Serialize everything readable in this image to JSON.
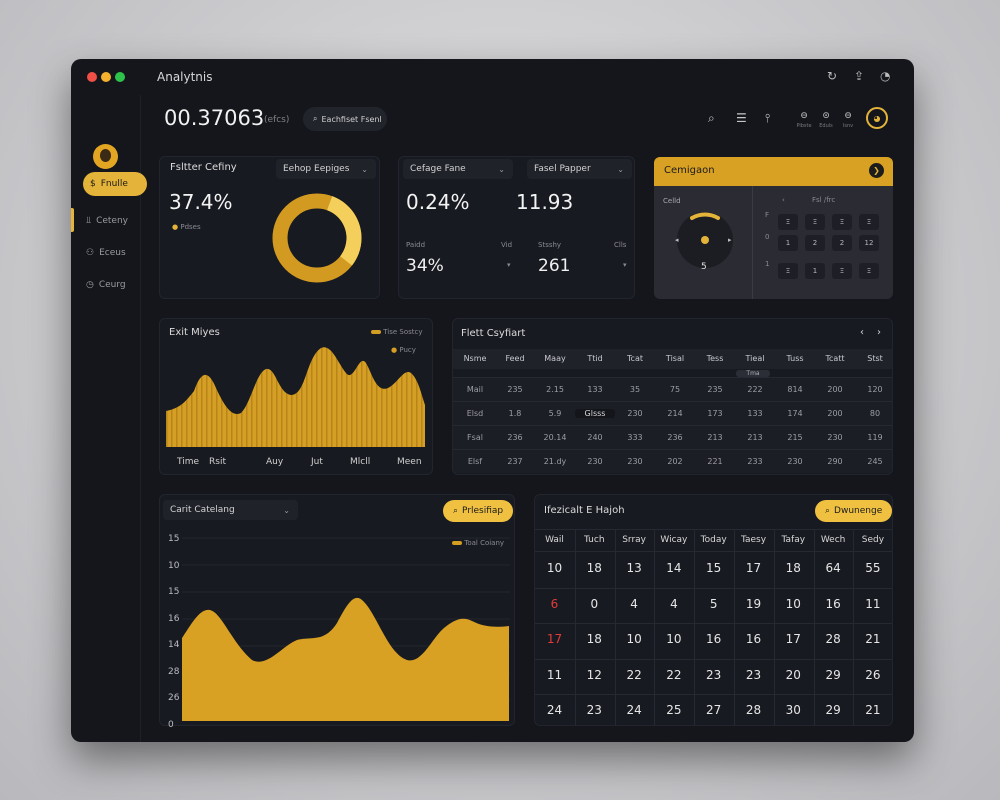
{
  "window": {
    "title": "Analytnis"
  },
  "titlebar": {
    "icons": [
      "refresh-icon",
      "share-icon",
      "notification-icon"
    ]
  },
  "sidebar": {
    "items": [
      {
        "label": "Fnulle",
        "icon": "dollar-icon",
        "active": true
      },
      {
        "label": "Ceteny",
        "icon": "chart-icon",
        "active": false
      },
      {
        "label": "Eceus",
        "icon": "users-icon",
        "active": false
      },
      {
        "label": "Ceurg",
        "icon": "clock-icon",
        "active": false
      }
    ]
  },
  "header": {
    "value": "00.37063",
    "unit": "(efcs)",
    "search_label": "Eachfiset Fsenl",
    "controls": [
      {
        "glyph": "⊖",
        "label": "Pibste"
      },
      {
        "glyph": "⊙",
        "label": "Eduls"
      },
      {
        "glyph": "⊖",
        "label": "Isnv"
      }
    ]
  },
  "card1": {
    "title": "Fsltter Cefiny",
    "select": "Eehop Eepiges",
    "value": "37.4%",
    "legend": "Pdses",
    "donut_fraction": 0.7
  },
  "card2": {
    "select1": "Cefage Fane",
    "select2": "Fasel Papper",
    "value1": "0.24%",
    "value2": "11.93",
    "label1": "Paidd",
    "label2": "Vid",
    "label3": "Stsshy",
    "label4": "Clls",
    "value3": "34%",
    "value4": "261"
  },
  "card3": {
    "title": "Cemigaon",
    "sub": "Celld",
    "gauge_value": "5",
    "grid_header": "Fsl /frc",
    "row_labels": [
      "F",
      "0",
      "1"
    ],
    "cells": [
      [
        "Ξ",
        "Ξ",
        "Ξ",
        "Ξ"
      ],
      [
        "1",
        "2",
        "2",
        "12"
      ],
      [
        "Ξ",
        "1",
        "Ξ",
        "Ξ"
      ]
    ]
  },
  "area1": {
    "title": "Exit Miyes",
    "legend1": "Tise Sostcy",
    "legend2": "Pucy",
    "xlabels": [
      "Time",
      "Rsit",
      "Auy",
      "Jut",
      "Mlcll",
      "Meen"
    ]
  },
  "table": {
    "title": "Flett Csyfiart",
    "columns": [
      "Nsme",
      "Feed",
      "Maay",
      "Ttid",
      "Tcat",
      "Tisal",
      "Tess",
      "Tieal",
      "Tuss",
      "Tcatt",
      "Stst"
    ],
    "badge": "Tma",
    "rows": [
      {
        "label": "Mail",
        "cells": [
          "235",
          "2.15",
          "133",
          "35",
          "75",
          "235",
          "222",
          "814",
          "200",
          "120"
        ]
      },
      {
        "label": "Elsd",
        "cells": [
          "1.8",
          "5.9",
          "Glsss",
          "230",
          "214",
          "173",
          "133",
          "174",
          "200",
          "80"
        ]
      },
      {
        "label": "Fsal",
        "cells": [
          "236",
          "20.14",
          "240",
          "333",
          "236",
          "213",
          "213",
          "215",
          "230",
          "119"
        ]
      },
      {
        "label": "Elsf",
        "cells": [
          "237",
          "21.dy",
          "230",
          "230",
          "202",
          "221",
          "233",
          "230",
          "290",
          "245"
        ]
      }
    ]
  },
  "area2": {
    "title": "Carit Catelang",
    "button": "Prlesifiap",
    "legend": "Toal Coiany",
    "ylabels": [
      "15",
      "10",
      "15",
      "16",
      "14",
      "28",
      "26",
      "0"
    ]
  },
  "calendar": {
    "title": "Ifezicalt E Hajoh",
    "button": "Dwunenge",
    "headers": [
      "Wail",
      "Tuch",
      "Srray",
      "Wicay",
      "Today",
      "Taesy",
      "Tafay",
      "Wech",
      "Sedy"
    ],
    "rows": [
      [
        "10",
        "18",
        "13",
        "14",
        "15",
        "17",
        "18",
        "64",
        "55"
      ],
      [
        "6",
        "0",
        "4",
        "4",
        "5",
        "19",
        "10",
        "16",
        "11"
      ],
      [
        "17",
        "18",
        "10",
        "10",
        "16",
        "16",
        "17",
        "28",
        "21"
      ],
      [
        "11",
        "12",
        "22",
        "22",
        "23",
        "23",
        "20",
        "29",
        "26"
      ],
      [
        "24",
        "23",
        "24",
        "25",
        "27",
        "28",
        "30",
        "29",
        "21"
      ]
    ]
  },
  "colors": {
    "accent": "#e4b33a",
    "fill": "#d39e21",
    "window": "#14161c",
    "card": "#181a21",
    "weekend": "#e23b3b"
  }
}
